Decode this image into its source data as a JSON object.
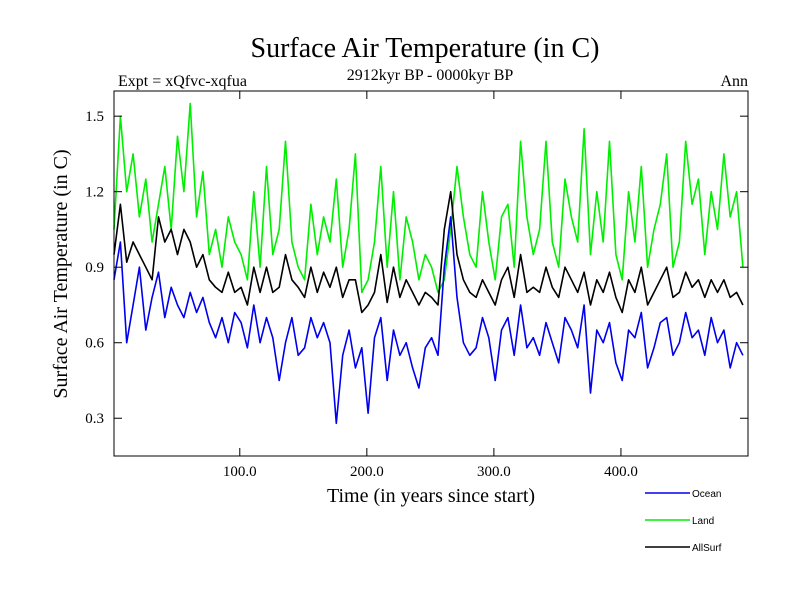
{
  "chart_data": {
    "type": "line",
    "title": "Surface Air Temperature (in C)",
    "subtitle": "2912kyr BP - 0000kyr BP",
    "experiment_label": "Expt = xQfvc-xqfua",
    "season_label": "Ann",
    "xlabel": "Time (in years since start)",
    "ylabel": "Surface Air Temperature (in C)",
    "xlim": [
      1,
      500
    ],
    "ylim": [
      0.15,
      1.6
    ],
    "xticks": [
      100,
      200,
      300,
      400
    ],
    "xtick_labels": [
      "100.0",
      "200.0",
      "300.0",
      "400.0"
    ],
    "yticks": [
      0.3,
      0.6,
      0.9,
      1.2,
      1.5
    ],
    "ytick_labels": [
      "0.3",
      "0.6",
      "0.9",
      "1.2",
      "1.5"
    ],
    "legend_position": "bottom-right, outside plot",
    "series": [
      {
        "name": "Land",
        "color": "#00ee00",
        "x_start": 1,
        "x_step": 5,
        "values": [
          1.05,
          1.5,
          1.2,
          1.35,
          1.1,
          1.25,
          1.0,
          1.15,
          1.3,
          1.05,
          1.42,
          1.2,
          1.55,
          1.1,
          1.28,
          0.95,
          1.05,
          0.9,
          1.1,
          1.0,
          0.95,
          0.85,
          1.2,
          0.9,
          1.3,
          0.95,
          1.05,
          1.4,
          1.0,
          0.9,
          0.85,
          1.15,
          0.95,
          1.1,
          1.0,
          1.25,
          0.9,
          1.05,
          1.35,
          0.8,
          0.85,
          1.0,
          1.3,
          0.9,
          1.2,
          0.85,
          1.1,
          1.0,
          0.85,
          0.95,
          0.9,
          0.8,
          0.85,
          1.05,
          1.3,
          1.1,
          0.95,
          0.9,
          1.2,
          1.0,
          0.85,
          1.1,
          1.15,
          0.9,
          1.4,
          1.1,
          0.95,
          1.05,
          1.4,
          1.0,
          0.9,
          1.25,
          1.1,
          1.0,
          1.45,
          0.95,
          1.2,
          1.0,
          1.4,
          0.95,
          0.85,
          1.2,
          1.0,
          1.3,
          0.9,
          1.05,
          1.15,
          1.35,
          0.9,
          1.0,
          1.4,
          1.15,
          1.25,
          0.95,
          1.2,
          1.05,
          1.35,
          1.1,
          1.2,
          0.9
        ]
      },
      {
        "name": "AllSurf",
        "color": "#000000",
        "x_start": 1,
        "x_step": 5,
        "values": [
          0.95,
          1.15,
          0.92,
          1.0,
          0.95,
          0.9,
          0.85,
          1.1,
          1.0,
          1.05,
          0.95,
          1.05,
          1.0,
          0.9,
          0.95,
          0.85,
          0.82,
          0.8,
          0.88,
          0.8,
          0.82,
          0.75,
          0.9,
          0.8,
          0.9,
          0.8,
          0.82,
          0.95,
          0.85,
          0.82,
          0.78,
          0.9,
          0.8,
          0.88,
          0.82,
          0.9,
          0.78,
          0.85,
          0.85,
          0.72,
          0.75,
          0.8,
          0.95,
          0.76,
          0.9,
          0.78,
          0.85,
          0.8,
          0.75,
          0.8,
          0.78,
          0.75,
          1.05,
          1.2,
          0.95,
          0.85,
          0.8,
          0.78,
          0.85,
          0.8,
          0.75,
          0.85,
          0.9,
          0.78,
          0.95,
          0.8,
          0.82,
          0.8,
          0.9,
          0.82,
          0.78,
          0.9,
          0.85,
          0.8,
          0.88,
          0.75,
          0.85,
          0.8,
          0.88,
          0.78,
          0.72,
          0.85,
          0.8,
          0.9,
          0.75,
          0.8,
          0.85,
          0.9,
          0.78,
          0.8,
          0.88,
          0.82,
          0.85,
          0.78,
          0.85,
          0.8,
          0.85,
          0.78,
          0.8,
          0.75
        ]
      },
      {
        "name": "Ocean",
        "color": "#0000ee",
        "x_start": 1,
        "x_step": 5,
        "values": [
          0.85,
          1.0,
          0.6,
          0.75,
          0.9,
          0.65,
          0.78,
          0.88,
          0.7,
          0.82,
          0.75,
          0.7,
          0.8,
          0.72,
          0.78,
          0.68,
          0.62,
          0.7,
          0.6,
          0.72,
          0.68,
          0.58,
          0.75,
          0.6,
          0.7,
          0.62,
          0.45,
          0.6,
          0.7,
          0.55,
          0.58,
          0.7,
          0.62,
          0.68,
          0.6,
          0.28,
          0.55,
          0.65,
          0.5,
          0.58,
          0.32,
          0.62,
          0.7,
          0.45,
          0.65,
          0.55,
          0.6,
          0.5,
          0.42,
          0.58,
          0.62,
          0.55,
          0.9,
          1.1,
          0.78,
          0.6,
          0.55,
          0.58,
          0.7,
          0.62,
          0.45,
          0.65,
          0.7,
          0.55,
          0.75,
          0.58,
          0.62,
          0.55,
          0.68,
          0.6,
          0.52,
          0.7,
          0.65,
          0.58,
          0.75,
          0.4,
          0.65,
          0.6,
          0.68,
          0.52,
          0.45,
          0.65,
          0.62,
          0.72,
          0.5,
          0.58,
          0.68,
          0.7,
          0.55,
          0.6,
          0.72,
          0.62,
          0.65,
          0.55,
          0.7,
          0.6,
          0.65,
          0.5,
          0.6,
          0.55
        ]
      }
    ]
  }
}
